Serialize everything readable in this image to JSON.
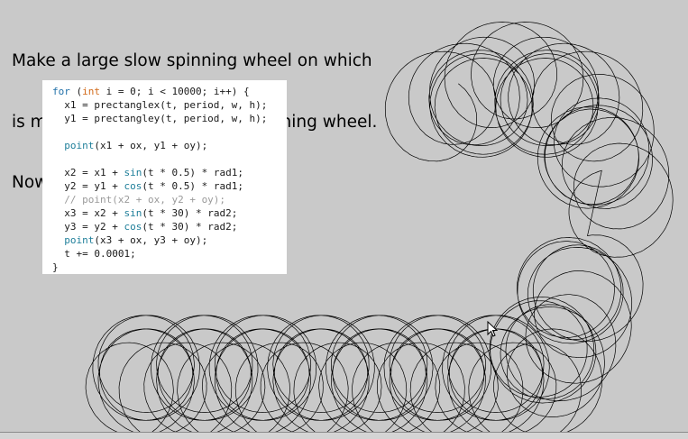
{
  "caption": {
    "lines": [
      "Make a large slow spinning wheel on which",
      "is mounted a smaller faster-spinning wheel.",
      "Now we're getting somewhere..."
    ]
  },
  "code": {
    "lines": [
      [
        {
          "t": "for",
          "c": "kw"
        },
        {
          "t": " ("
        },
        {
          "t": "int",
          "c": "ty"
        },
        {
          "t": " i = 0; i < 10000; i++) {"
        }
      ],
      [
        {
          "t": "  x1 = prectanglex(t, period, w, h);"
        }
      ],
      [
        {
          "t": "  y1 = prectangley(t, period, w, h);"
        }
      ],
      [
        {
          "t": ""
        }
      ],
      [
        {
          "t": "  "
        },
        {
          "t": "point",
          "c": "fn"
        },
        {
          "t": "(x1 + ox, y1 + oy);"
        }
      ],
      [
        {
          "t": ""
        }
      ],
      [
        {
          "t": "  x2 = x1 + "
        },
        {
          "t": "sin",
          "c": "fn"
        },
        {
          "t": "(t * 0.5) * rad1;"
        }
      ],
      [
        {
          "t": "  y2 = y1 + "
        },
        {
          "t": "cos",
          "c": "fn"
        },
        {
          "t": "(t * 0.5) * rad1;"
        }
      ],
      [
        {
          "t": "  // point(x2 + ox, y2 + oy);",
          "c": "cm"
        }
      ],
      [
        {
          "t": "  x3 = x2 + "
        },
        {
          "t": "sin",
          "c": "fn"
        },
        {
          "t": "(t * 30) * rad2;"
        }
      ],
      [
        {
          "t": "  y3 = y2 + "
        },
        {
          "t": "cos",
          "c": "fn"
        },
        {
          "t": "(t * 30) * rad2;"
        }
      ],
      [
        {
          "t": "  "
        },
        {
          "t": "point",
          "c": "fn"
        },
        {
          "t": "(x3 + ox, y3 + oy);"
        }
      ],
      [
        {
          "t": "  t += 0.0001;"
        }
      ],
      [
        {
          "t": "}"
        }
      ]
    ]
  },
  "colors": {
    "background": "#c9c9c9",
    "keyword": "#1f6fa8",
    "type": "#d26a1a",
    "function": "#1f7f9a",
    "comment": "#9a9a9a"
  },
  "icons": [
    "mouse-cursor-icon"
  ]
}
